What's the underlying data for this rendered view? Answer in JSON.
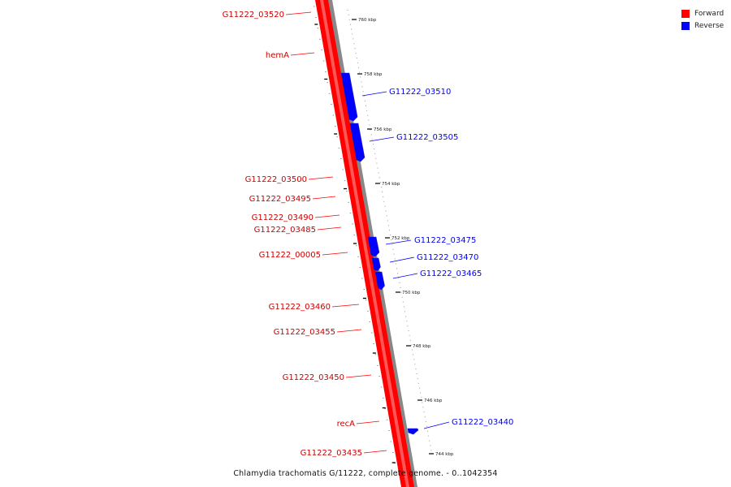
{
  "title": "Chlamydia trachomatis G/11222, complete genome. - 0..1042354",
  "legend": {
    "forward_label": "Forward",
    "reverse_label": "Reverse",
    "forward_color": "#ff0000",
    "reverse_color": "#0000ff"
  },
  "ticks": [
    {
      "label": "760 kbp"
    },
    {
      "label": "758 kbp"
    },
    {
      "label": "756 kbp"
    },
    {
      "label": "754 kbp"
    },
    {
      "label": "752 kbp"
    },
    {
      "label": "750 kbp"
    },
    {
      "label": "748 kbp"
    },
    {
      "label": "746 kbp"
    },
    {
      "label": "744 kbp"
    }
  ],
  "forward_genes": [
    {
      "name": "G11222_03520"
    },
    {
      "name": "hemA"
    },
    {
      "name": "G11222_03500"
    },
    {
      "name": "G11222_03495"
    },
    {
      "name": "G11222_03490"
    },
    {
      "name": "G11222_03485"
    },
    {
      "name": "G11222_00005"
    },
    {
      "name": "G11222_03460"
    },
    {
      "name": "G11222_03455"
    },
    {
      "name": "G11222_03450"
    },
    {
      "name": "recA"
    },
    {
      "name": "G11222_03435"
    }
  ],
  "reverse_genes": [
    {
      "name": "G11222_03510"
    },
    {
      "name": "G11222_03505"
    },
    {
      "name": "G11222_03475"
    },
    {
      "name": "G11222_03470"
    },
    {
      "name": "G11222_03465"
    },
    {
      "name": "G11222_03440"
    }
  ]
}
